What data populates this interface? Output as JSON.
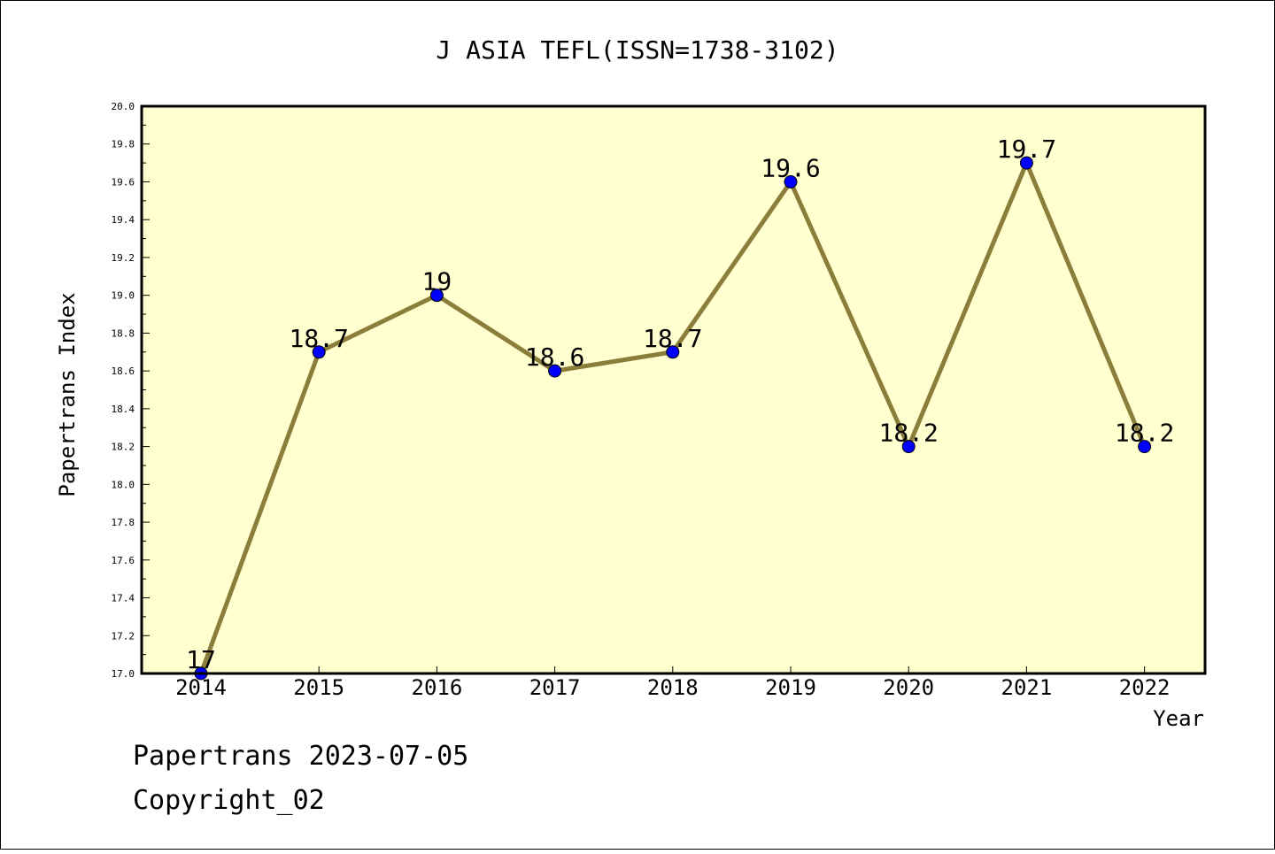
{
  "chart_data": {
    "type": "line",
    "title": "J ASIA TEFL(ISSN=1738-3102)",
    "xlabel": "Year",
    "ylabel": "Papertrans Index",
    "x": [
      "2014",
      "2015",
      "2016",
      "2017",
      "2018",
      "2019",
      "2020",
      "2021",
      "2022"
    ],
    "series": [
      {
        "values": [
          17,
          18.7,
          19,
          18.6,
          18.7,
          19.6,
          18.2,
          19.7,
          18.2
        ],
        "data_labels": [
          "17",
          "18.7",
          "19",
          "18.6",
          "18.7",
          "19.6",
          "18.2",
          "19.7",
          "18.2"
        ],
        "line_color": "#8b7d3a",
        "marker_color": "#0000ff"
      }
    ],
    "ylim": [
      17.0,
      20.0
    ],
    "yticks": [
      "17.0",
      "17.2",
      "17.4",
      "17.6",
      "17.8",
      "18.0",
      "18.2",
      "18.4",
      "18.6",
      "18.8",
      "19.0",
      "19.2",
      "19.4",
      "19.6",
      "19.8",
      "20.0"
    ],
    "grid": false,
    "plot_background": "#ffffd0"
  },
  "footer": {
    "line1": "Papertrans 2023-07-05",
    "line2": "Copyright_02"
  }
}
